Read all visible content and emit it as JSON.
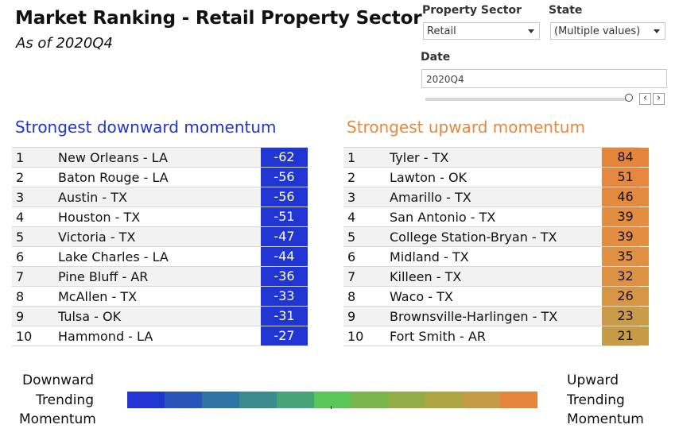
{
  "header": {
    "title": "Market Ranking - Retail Property Sector",
    "subtitle": "As of 2020Q4"
  },
  "filters": {
    "property_sector": {
      "label": "Property Sector",
      "value": "Retail"
    },
    "state": {
      "label": "State",
      "value": "(Multiple values)"
    },
    "date": {
      "label": "Date",
      "value": "2020Q4",
      "slider_level": 1.0
    }
  },
  "downward": {
    "heading": "Strongest downward momentum",
    "color": "#2035d2",
    "rows": [
      {
        "rank": "1",
        "name": "New Orleans - LA",
        "value": "-62"
      },
      {
        "rank": "2",
        "name": "Baton Rouge - LA",
        "value": "-56"
      },
      {
        "rank": "3",
        "name": "Austin - TX",
        "value": "-56"
      },
      {
        "rank": "4",
        "name": "Houston - TX",
        "value": "-51"
      },
      {
        "rank": "5",
        "name": "Victoria - TX",
        "value": "-47"
      },
      {
        "rank": "6",
        "name": "Lake Charles - LA",
        "value": "-44"
      },
      {
        "rank": "7",
        "name": "Pine Bluff - AR",
        "value": "-36"
      },
      {
        "rank": "8",
        "name": "McAllen - TX",
        "value": "-33"
      },
      {
        "rank": "9",
        "name": "Tulsa - OK",
        "value": "-31"
      },
      {
        "rank": "10",
        "name": "Hammond - LA",
        "value": "-27"
      }
    ]
  },
  "upward": {
    "heading": "Strongest upward momentum",
    "color": "#e8883c",
    "rows": [
      {
        "rank": "1",
        "name": "Tyler - TX",
        "value": "84",
        "color": "#e5853c"
      },
      {
        "rank": "2",
        "name": "Lawton - OK",
        "value": "51",
        "color": "#e5873e"
      },
      {
        "rank": "3",
        "name": "Amarillo - TX",
        "value": "46",
        "color": "#e48a3e"
      },
      {
        "rank": "4",
        "name": "San Antonio - TX",
        "value": "39",
        "color": "#e28d40"
      },
      {
        "rank": "5",
        "name": "College Station-Bryan - TX",
        "value": "39",
        "color": "#e28d40"
      },
      {
        "rank": "6",
        "name": "Midland - TX",
        "value": "35",
        "color": "#df9042"
      },
      {
        "rank": "7",
        "name": "Killeen - TX",
        "value": "32",
        "color": "#dc9244"
      },
      {
        "rank": "8",
        "name": "Waco - TX",
        "value": "26",
        "color": "#d69646"
      },
      {
        "rank": "9",
        "name": "Brownsville-Harlingen - TX",
        "value": "23",
        "color": "#c99a47"
      },
      {
        "rank": "10",
        "name": "Fort Smith - AR",
        "value": "21",
        "color": "#c59b48"
      }
    ]
  },
  "legend": {
    "left_lines": [
      "Downward",
      "Trending",
      "Momentum"
    ],
    "right_lines": [
      "Upward",
      "Trending",
      "Momentum"
    ],
    "colors": [
      "#2035d2",
      "#2a55b8",
      "#2f72a4",
      "#3a8a8e",
      "#46a477",
      "#5ac65a",
      "#79b64c",
      "#93ad48",
      "#aea545",
      "#c59b48",
      "#e5853c"
    ]
  }
}
